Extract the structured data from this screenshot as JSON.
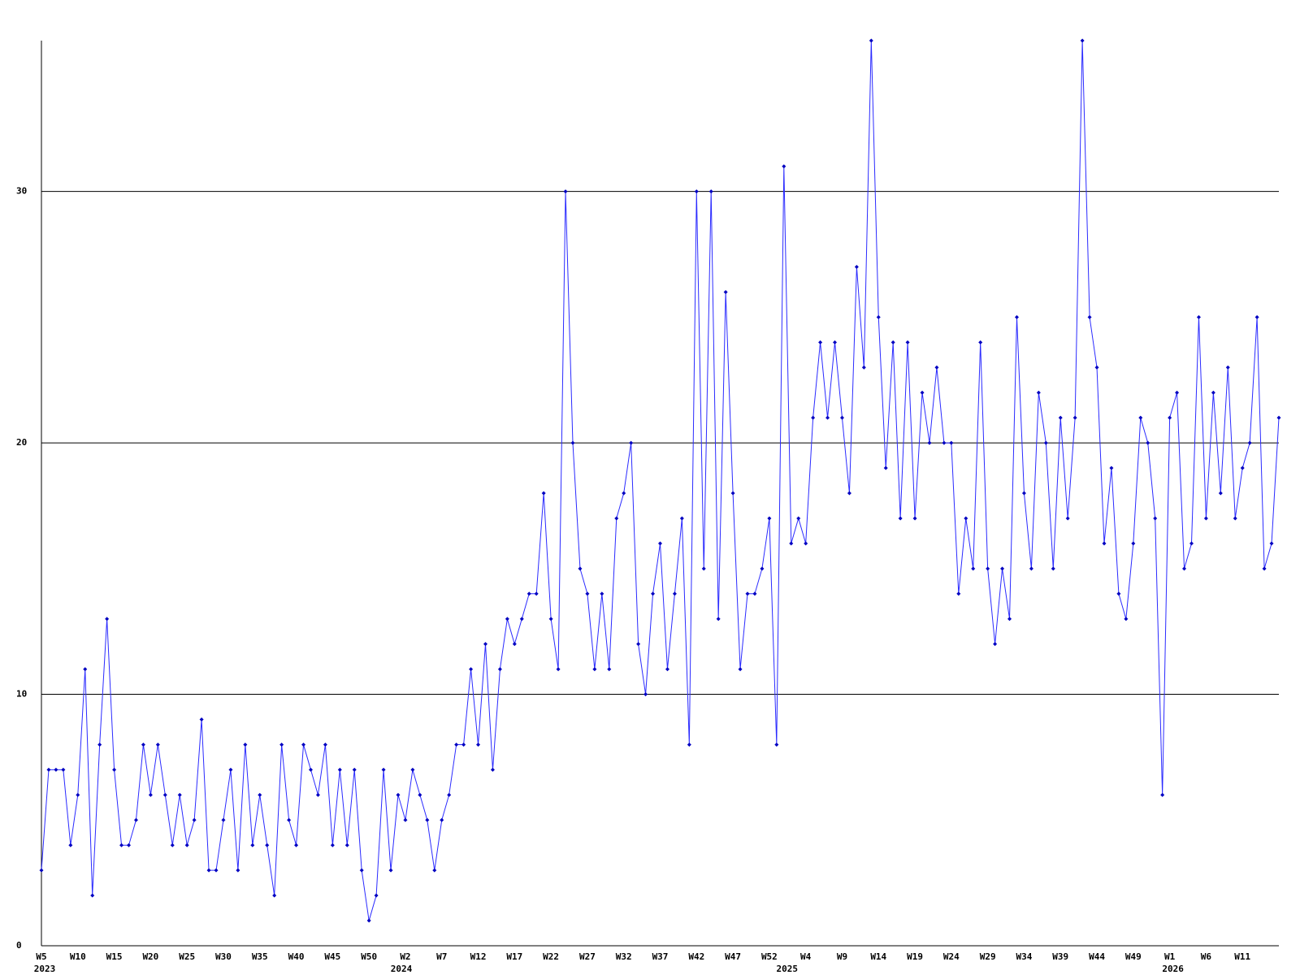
{
  "chart_data": {
    "type": "line",
    "categories": [
      "W5",
      null,
      null,
      null,
      null,
      "W10",
      null,
      null,
      null,
      null,
      "W15",
      null,
      null,
      null,
      null,
      "W20",
      null,
      null,
      null,
      null,
      "W25",
      null,
      null,
      null,
      null,
      "W30",
      null,
      null,
      null,
      null,
      "W35",
      null,
      null,
      null,
      null,
      "W40",
      null,
      null,
      null,
      null,
      "W45",
      null,
      null,
      null,
      null,
      "W50",
      null,
      null,
      null,
      null,
      "W2",
      null,
      null,
      null,
      null,
      "W7",
      null,
      null,
      null,
      null,
      "W12",
      null,
      null,
      null,
      null,
      "W17",
      null,
      null,
      null,
      null,
      "W22",
      null,
      null,
      null,
      null,
      "W27",
      null,
      null,
      null,
      null,
      "W32",
      null,
      null,
      null,
      null,
      "W37",
      null,
      null,
      null,
      null,
      "W42",
      null,
      null,
      null,
      null,
      "W47",
      null,
      null,
      null,
      null,
      "W52",
      null,
      null,
      null,
      null,
      "W4",
      null,
      null,
      null,
      null,
      "W9",
      null,
      null,
      null,
      null,
      "W14",
      null,
      null,
      null,
      null,
      "W19",
      null,
      null,
      null,
      null,
      "W24",
      null,
      null,
      null,
      null,
      "W29",
      null,
      null,
      null,
      null,
      "W34",
      null,
      null,
      null,
      null,
      "W39",
      null,
      null,
      null,
      null,
      "W44",
      null,
      null,
      null,
      null,
      "W49",
      null,
      null,
      null,
      null,
      "W1",
      null,
      null,
      null,
      null,
      "W6",
      null,
      null,
      null,
      null,
      "W11",
      null,
      null,
      null,
      null,
      null
    ],
    "year_labels": [
      "2023",
      null,
      null,
      null,
      null,
      null,
      null,
      null,
      null,
      null,
      null,
      null,
      null,
      null,
      null,
      null,
      null,
      null,
      null,
      null,
      null,
      null,
      null,
      null,
      null,
      null,
      null,
      null,
      null,
      null,
      null,
      null,
      null,
      null,
      null,
      null,
      null,
      null,
      null,
      null,
      null,
      null,
      null,
      null,
      null,
      null,
      null,
      null,
      null,
      "2024",
      null,
      null,
      null,
      null,
      null,
      null,
      null,
      null,
      null,
      null,
      null,
      null,
      null,
      null,
      null,
      null,
      null,
      null,
      null,
      null,
      null,
      null,
      null,
      null,
      null,
      null,
      null,
      null,
      null,
      null,
      null,
      null,
      null,
      null,
      null,
      null,
      null,
      null,
      null,
      null,
      null,
      null,
      null,
      null,
      null,
      null,
      null,
      null,
      null,
      null,
      null,
      null,
      "2025",
      null,
      null,
      null,
      null,
      null,
      null,
      null,
      null,
      null,
      null,
      null,
      null,
      null,
      null,
      null,
      null,
      null,
      null,
      null,
      null,
      null,
      null,
      null,
      null,
      null,
      null,
      null,
      null,
      null,
      null,
      null,
      null,
      null,
      null,
      null,
      null,
      null,
      null,
      null,
      null,
      null,
      null,
      null,
      null,
      null,
      null,
      null,
      null,
      null,
      null,
      null,
      null,
      "2026",
      null,
      null,
      null,
      null,
      null,
      null,
      null,
      null,
      null,
      null,
      null,
      null,
      null,
      null,
      null
    ],
    "values": [
      3,
      7,
      7,
      7,
      4,
      6,
      11,
      2,
      8,
      13,
      7,
      4,
      4,
      5,
      8,
      6,
      8,
      6,
      4,
      6,
      4,
      5,
      9,
      3,
      3,
      5,
      7,
      3,
      8,
      4,
      6,
      4,
      2,
      8,
      5,
      4,
      8,
      7,
      6,
      8,
      4,
      7,
      4,
      7,
      3,
      1,
      2,
      7,
      3,
      6,
      5,
      7,
      6,
      5,
      3,
      5,
      6,
      8,
      8,
      11,
      8,
      12,
      7,
      11,
      13,
      12,
      13,
      14,
      14,
      18,
      13,
      11,
      30,
      20,
      15,
      14,
      11,
      14,
      11,
      17,
      18,
      20,
      12,
      10,
      14,
      16,
      11,
      14,
      17,
      8,
      30,
      15,
      30,
      13,
      26,
      18,
      11,
      14,
      14,
      15,
      17,
      8,
      31,
      16,
      17,
      16,
      21,
      24,
      21,
      24,
      21,
      18,
      27,
      23,
      36,
      25,
      19,
      24,
      17,
      24,
      17,
      22,
      20,
      23,
      20,
      20,
      14,
      17,
      15,
      24,
      15,
      12,
      15,
      13,
      25,
      18,
      15,
      22,
      20,
      15,
      21,
      17,
      21,
      36,
      25,
      23,
      16,
      19,
      14,
      13,
      16,
      21,
      20,
      17,
      6,
      21,
      22,
      15,
      16,
      25,
      17,
      22,
      18,
      23,
      17,
      19,
      20,
      25,
      15,
      16,
      21
    ],
    "color": "#2b2bff",
    "marker_color": "#0000c0",
    "ylim": [
      0,
      36
    ],
    "yticks": [
      0,
      10,
      20,
      30
    ],
    "grid": true
  }
}
